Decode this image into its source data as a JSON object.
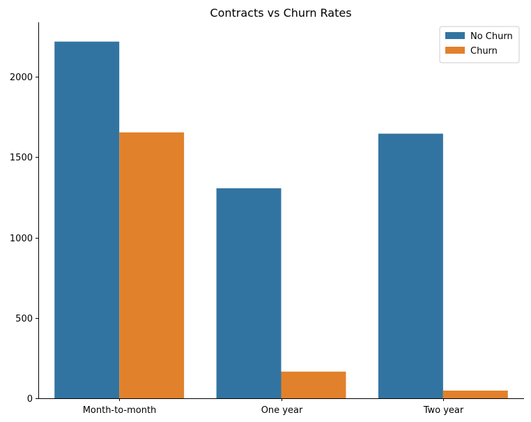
{
  "chart_data": {
    "type": "bar",
    "title": "Contracts vs Churn Rates",
    "xlabel": "",
    "ylabel": "",
    "categories": [
      "Month-to-month",
      "One year",
      "Two year"
    ],
    "series": [
      {
        "name": "No Churn",
        "color": "#3274a1",
        "values": [
          2220,
          1307,
          1647
        ]
      },
      {
        "name": "Churn",
        "color": "#e1812c",
        "values": [
          1655,
          166,
          48
        ]
      }
    ],
    "ylim": [
      0,
      2340
    ],
    "yticks": [
      0,
      500,
      1000,
      1500,
      2000
    ],
    "grid": false,
    "legend_position": "top-right"
  }
}
